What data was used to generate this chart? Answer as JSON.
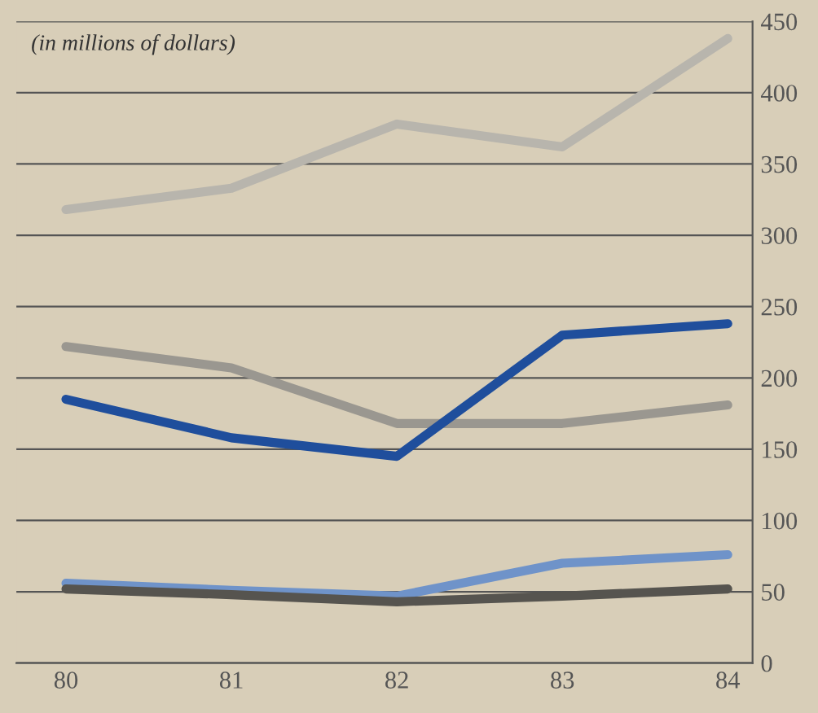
{
  "chart_data": {
    "type": "line",
    "annotations": [
      "(in millions of dollars)"
    ],
    "categories": [
      "80",
      "81",
      "82",
      "83",
      "84"
    ],
    "series": [
      {
        "color": "#b8b5ad",
        "values": [
          318,
          333,
          378,
          362,
          438
        ]
      },
      {
        "color": "#9a9790",
        "values": [
          222,
          207,
          168,
          168,
          181
        ]
      },
      {
        "color": "#1f4e9c",
        "values": [
          185,
          158,
          145,
          230,
          238
        ]
      },
      {
        "color": "#6f93c9",
        "values": [
          56,
          51,
          47,
          70,
          76
        ]
      },
      {
        "color": "#56544f",
        "values": [
          52,
          48,
          43,
          47,
          52
        ]
      }
    ],
    "ylim": [
      0,
      450
    ],
    "yticks": [
      0,
      50,
      100,
      150,
      200,
      250,
      300,
      350,
      400,
      450
    ],
    "grid": "y",
    "marker": "none",
    "line_style": "solid"
  }
}
